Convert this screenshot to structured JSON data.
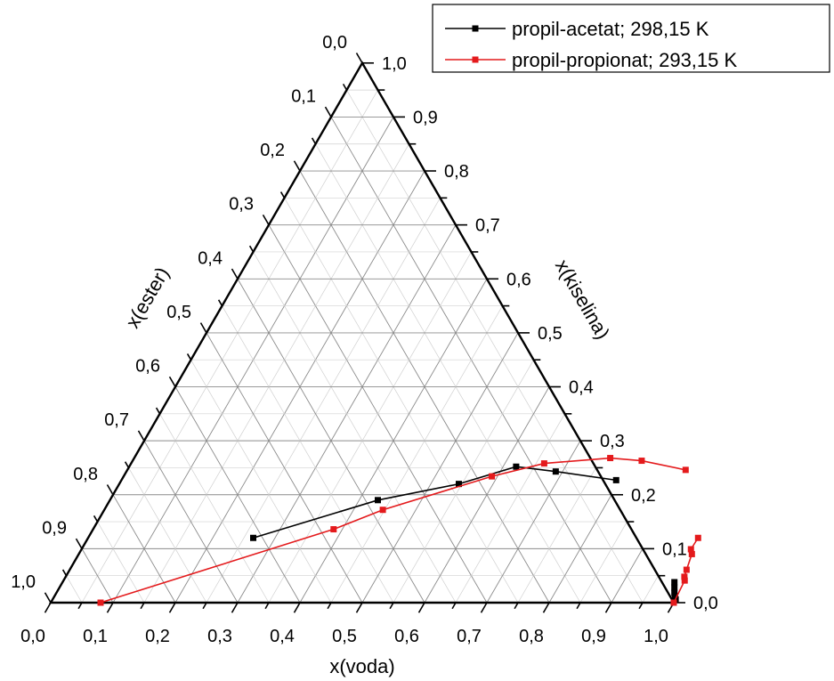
{
  "chart_data": {
    "type": "scatter",
    "subtype": "ternary",
    "grid": true,
    "legend_placement": "top-right",
    "axes": {
      "bottom": {
        "label": "x(voda)",
        "tick_labels": [
          "0,0",
          "0,1",
          "0,2",
          "0,3",
          "0,4",
          "0,5",
          "0,6",
          "0,7",
          "0,8",
          "0,9",
          "1,0"
        ]
      },
      "right": {
        "label": "x(kiselina)",
        "tick_labels": [
          "0,0",
          "0,1",
          "0,2",
          "0,3",
          "0,4",
          "0,5",
          "0,6",
          "0,7",
          "0,8",
          "0,9",
          "1,0"
        ]
      },
      "left": {
        "label": "x(ester)",
        "tick_labels": [
          "0,0",
          "0,1",
          "0,2",
          "0,3",
          "0,4",
          "0,5",
          "0,6",
          "0,7",
          "0,8",
          "0,9",
          "1,0"
        ]
      }
    },
    "series": [
      {
        "name": "propil-acetat; 298,15 K",
        "color": "#000000",
        "marker": "square",
        "segments": [
          [
            {
              "voda": 0.265,
              "kiselina": 0.12
            },
            {
              "voda": 0.43,
              "kiselina": 0.19
            },
            {
              "voda": 0.545,
              "kiselina": 0.22
            },
            {
              "voda": 0.621,
              "kiselina": 0.252
            },
            {
              "voda": 0.689,
              "kiselina": 0.243
            },
            {
              "voda": 0.794,
              "kiselina": 0.227
            }
          ],
          [
            {
              "voda": 0.982,
              "kiselina": 0.038
            },
            {
              "voda": 0.987,
              "kiselina": 0.028
            },
            {
              "voda": 0.992,
              "kiselina": 0.018
            },
            {
              "voda": 0.996,
              "kiselina": 0.012
            },
            {
              "voda": 1.0,
              "kiselina": 0.006
            }
          ]
        ]
      },
      {
        "name": "propil-propionat; 293,15 K",
        "color": "#e41a1c",
        "marker": "square",
        "segments": [
          [
            {
              "voda": 0.08,
              "kiselina": 0.0
            },
            {
              "voda": 0.386,
              "kiselina": 0.136
            },
            {
              "voda": 0.447,
              "kiselina": 0.172
            },
            {
              "voda": 0.591,
              "kiselina": 0.234
            },
            {
              "voda": 0.663,
              "kiselina": 0.258
            },
            {
              "voda": 0.764,
              "kiselina": 0.268
            },
            {
              "voda": 0.817,
              "kiselina": 0.263
            },
            {
              "voda": 0.896,
              "kiselina": 0.246
            }
          ],
          [
            {
              "voda": 0.979,
              "kiselina": 0.12
            },
            {
              "voda": 0.978,
              "kiselina": 0.099
            },
            {
              "voda": 0.984,
              "kiselina": 0.09
            },
            {
              "voda": 0.99,
              "kiselina": 0.061
            },
            {
              "voda": 0.993,
              "kiselina": 0.048
            },
            {
              "voda": 0.997,
              "kiselina": 0.041
            },
            {
              "voda": 1.0,
              "kiselina": 0.0
            }
          ]
        ]
      }
    ]
  }
}
